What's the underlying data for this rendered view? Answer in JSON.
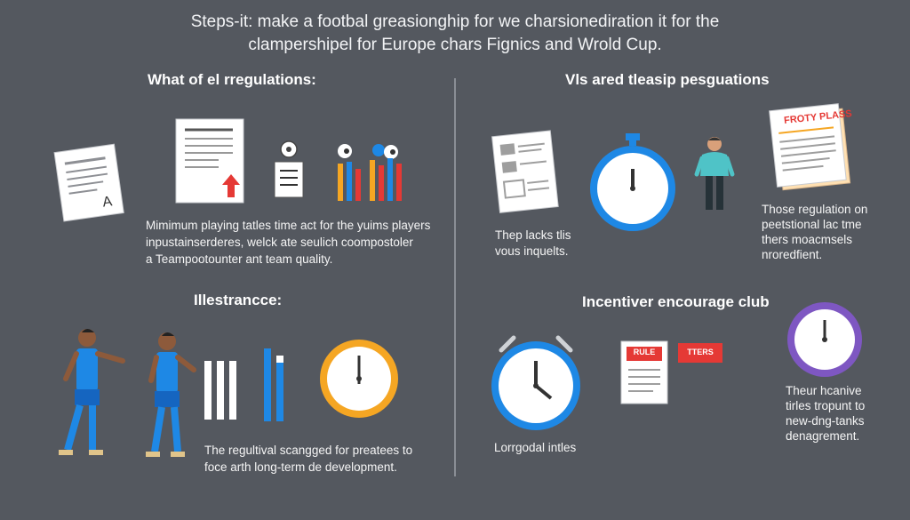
{
  "title": {
    "line1": "Steps-it: make a footbal greasionghip for we charsionediration it for the",
    "line2": "clampershipel for Europe chars Fignics and Wrold Cup."
  },
  "left_top": {
    "heading": "What of el rregulations:",
    "body": [
      "Mimimum playing tatles time act for the yuims players",
      "inpustainserderes, welck ate seulich coompostoler",
      "a Teampootounter ant team quality."
    ]
  },
  "left_bottom": {
    "heading": "Illestrancce:",
    "body": [
      "The regultival scangged for preatees to",
      "foce arth long-term de development."
    ]
  },
  "right_top": {
    "heading": "Vls ared tleasip pesguations",
    "doc_caption": [
      "Thep lacks tlis",
      "vous inquelts."
    ],
    "sign_label": "FROTY PLASS",
    "side_text": [
      "Those regulation on",
      "peetstional lac tme",
      "thers moacmsels",
      "nroredfient."
    ]
  },
  "right_bottom": {
    "heading": "Incentiver encourage club",
    "rule_label": "RULE",
    "tag_label": "TTERS",
    "caption": "Lorrgodal intles",
    "side_text": [
      "Theur hcanive",
      "tirles tropunt to",
      "new-dng-tanks",
      "denagrement."
    ]
  },
  "colors": {
    "background": "#54585f",
    "blue": "#1e88e5",
    "orange": "#f5a623",
    "purple": "#7e57c2",
    "red": "#e53935"
  }
}
